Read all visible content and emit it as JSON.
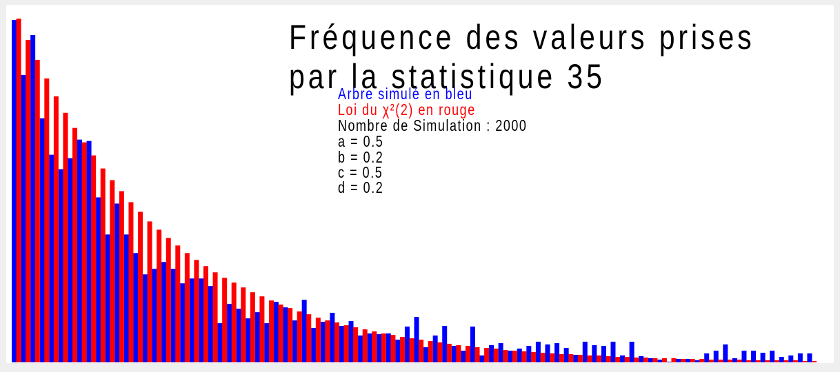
{
  "colors": {
    "series_blue": "#0000ff",
    "series_red": "#ff0000",
    "text": "#000000",
    "background": "#ffffff",
    "frame": "#efefef"
  },
  "chart_data": {
    "type": "bar",
    "title": [
      "Fréquence des valeurs prises",
      "par la statistique 35"
    ],
    "annotations": [
      {
        "text": "Arbre simulé en bleu",
        "color": "#0000ff"
      },
      {
        "text": "Loi du χ²(2) en rouge",
        "color": "#ff0000"
      },
      {
        "text": "Nombre de Simulation : 2000",
        "color": "#000000"
      },
      {
        "text": "a = 0.5",
        "color": "#000000"
      },
      {
        "text": "b = 0.2",
        "color": "#000000"
      },
      {
        "text": "c = 0.5",
        "color": "#000000"
      },
      {
        "text": "d = 0.2",
        "color": "#000000"
      }
    ],
    "xlabel": "",
    "ylabel": "",
    "axes_visible": false,
    "grid": false,
    "ylim": [
      0,
      500
    ],
    "series": [
      {
        "color": "#0000ff",
        "values": [
          498,
          418,
          476,
          355,
          302,
          281,
          297,
          324,
          322,
          240,
          186,
          231,
          186,
          159,
          128,
          136,
          146,
          136,
          115,
          122,
          122,
          111,
          57,
          85,
          78,
          64,
          73,
          57,
          88,
          80,
          61,
          91,
          50,
          59,
          72,
          53,
          60,
          39,
          42,
          41,
          42,
          33,
          52,
          66,
          22,
          39,
          53,
          24,
          17,
          52,
          10,
          25,
          28,
          17,
          20,
          24,
          30,
          26,
          28,
          21,
          11,
          30,
          25,
          24,
          30,
          10,
          30,
          9,
          6,
          4,
          1,
          5,
          5,
          3,
          13,
          17,
          26,
          6,
          17,
          17,
          14,
          17,
          8,
          10,
          13,
          13
        ]
      },
      {
        "color": "#ff0000",
        "values": [
          500,
          469,
          440,
          413,
          387,
          363,
          341,
          320,
          301,
          282,
          265,
          249,
          233,
          219,
          205,
          193,
          181,
          170,
          159,
          149,
          140,
          131,
          123,
          116,
          109,
          102,
          96,
          90,
          84,
          79,
          74,
          70,
          65,
          61,
          58,
          54,
          51,
          48,
          45,
          42,
          40,
          37,
          35,
          33,
          31,
          29,
          27,
          25,
          24,
          22,
          21,
          20,
          18,
          17,
          16,
          15,
          14,
          13,
          12,
          12,
          11,
          10,
          10,
          9,
          8,
          8,
          7,
          7,
          6,
          6,
          6,
          5,
          5,
          5,
          4,
          4,
          4,
          4,
          3,
          3,
          3,
          3,
          3,
          3,
          2,
          2
        ]
      }
    ]
  }
}
